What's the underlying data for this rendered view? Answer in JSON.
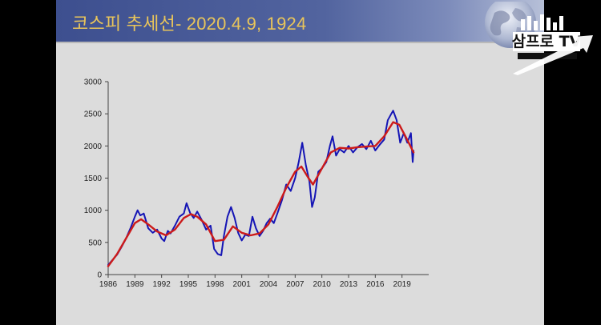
{
  "slide": {
    "title": "코스피 추세선- 2020.4.9, 1924"
  },
  "watermark": {
    "logo_text": "삼프로 TV"
  },
  "colors": {
    "title_bar": "#3d4f8f",
    "title_text": "#e9c55a",
    "series_actual": "#1515b5",
    "series_trend": "#cc1a1a",
    "slide_bg": "#dcdcdc"
  },
  "icons": [
    "globe-icon",
    "samprotv-logo-icon"
  ],
  "chart_data": {
    "type": "line",
    "title": "",
    "xlabel": "",
    "ylabel": "",
    "xlim": [
      1986,
      2022
    ],
    "ylim": [
      0,
      3000
    ],
    "x_ticks": [
      1986,
      1989,
      1992,
      1995,
      1998,
      2001,
      2004,
      2007,
      2010,
      2013,
      2016,
      2019
    ],
    "y_ticks": [
      0,
      500,
      1000,
      1500,
      2000,
      2500,
      3000
    ],
    "grid": false,
    "series": [
      {
        "color": "#1515b5",
        "points": [
          [
            1986.0,
            150
          ],
          [
            1986.5,
            230
          ],
          [
            1987.0,
            310
          ],
          [
            1987.5,
            430
          ],
          [
            1988.0,
            560
          ],
          [
            1988.5,
            720
          ],
          [
            1989.0,
            900
          ],
          [
            1989.3,
            1000
          ],
          [
            1989.6,
            920
          ],
          [
            1990.0,
            950
          ],
          [
            1990.5,
            720
          ],
          [
            1991.0,
            650
          ],
          [
            1991.5,
            700
          ],
          [
            1992.0,
            560
          ],
          [
            1992.3,
            520
          ],
          [
            1992.7,
            680
          ],
          [
            1993.0,
            640
          ],
          [
            1993.5,
            760
          ],
          [
            1994.0,
            900
          ],
          [
            1994.5,
            950
          ],
          [
            1994.8,
            1110
          ],
          [
            1995.2,
            960
          ],
          [
            1995.6,
            880
          ],
          [
            1996.0,
            980
          ],
          [
            1996.5,
            850
          ],
          [
            1997.0,
            700
          ],
          [
            1997.5,
            760
          ],
          [
            1997.9,
            400
          ],
          [
            1998.3,
            320
          ],
          [
            1998.7,
            300
          ],
          [
            1999.0,
            600
          ],
          [
            1999.4,
            900
          ],
          [
            1999.8,
            1050
          ],
          [
            2000.2,
            880
          ],
          [
            2000.6,
            650
          ],
          [
            2001.0,
            530
          ],
          [
            2001.4,
            620
          ],
          [
            2001.8,
            600
          ],
          [
            2002.2,
            900
          ],
          [
            2002.6,
            720
          ],
          [
            2003.0,
            600
          ],
          [
            2003.4,
            680
          ],
          [
            2003.8,
            800
          ],
          [
            2004.2,
            870
          ],
          [
            2004.6,
            800
          ],
          [
            2005.0,
            950
          ],
          [
            2005.5,
            1150
          ],
          [
            2006.0,
            1400
          ],
          [
            2006.5,
            1300
          ],
          [
            2007.0,
            1500
          ],
          [
            2007.4,
            1750
          ],
          [
            2007.8,
            2050
          ],
          [
            2008.2,
            1700
          ],
          [
            2008.6,
            1450
          ],
          [
            2008.9,
            1050
          ],
          [
            2009.2,
            1200
          ],
          [
            2009.6,
            1600
          ],
          [
            2010.0,
            1650
          ],
          [
            2010.5,
            1750
          ],
          [
            2010.9,
            2000
          ],
          [
            2011.2,
            2150
          ],
          [
            2011.6,
            1850
          ],
          [
            2012.0,
            1950
          ],
          [
            2012.5,
            1900
          ],
          [
            2013.0,
            2000
          ],
          [
            2013.5,
            1900
          ],
          [
            2014.0,
            1980
          ],
          [
            2014.5,
            2030
          ],
          [
            2015.0,
            1950
          ],
          [
            2015.5,
            2080
          ],
          [
            2016.0,
            1930
          ],
          [
            2016.5,
            2020
          ],
          [
            2017.0,
            2100
          ],
          [
            2017.4,
            2400
          ],
          [
            2017.8,
            2500
          ],
          [
            2018.0,
            2550
          ],
          [
            2018.4,
            2400
          ],
          [
            2018.8,
            2050
          ],
          [
            2019.2,
            2200
          ],
          [
            2019.6,
            2050
          ],
          [
            2020.0,
            2200
          ],
          [
            2020.2,
            1750
          ],
          [
            2020.3,
            1924
          ]
        ]
      },
      {
        "color": "#cc1a1a",
        "points": [
          [
            1986.0,
            130
          ],
          [
            1987.0,
            320
          ],
          [
            1988.0,
            560
          ],
          [
            1989.0,
            800
          ],
          [
            1989.7,
            860
          ],
          [
            1990.5,
            780
          ],
          [
            1991.5,
            670
          ],
          [
            1992.5,
            610
          ],
          [
            1993.5,
            700
          ],
          [
            1994.5,
            880
          ],
          [
            1995.3,
            940
          ],
          [
            1996.0,
            900
          ],
          [
            1997.0,
            780
          ],
          [
            1998.0,
            520
          ],
          [
            1999.0,
            540
          ],
          [
            2000.0,
            750
          ],
          [
            2001.0,
            650
          ],
          [
            2002.0,
            610
          ],
          [
            2003.0,
            640
          ],
          [
            2004.0,
            780
          ],
          [
            2005.0,
            1050
          ],
          [
            2006.0,
            1350
          ],
          [
            2007.0,
            1600
          ],
          [
            2007.7,
            1680
          ],
          [
            2008.5,
            1500
          ],
          [
            2009.0,
            1400
          ],
          [
            2010.0,
            1650
          ],
          [
            2011.0,
            1900
          ],
          [
            2012.0,
            1970
          ],
          [
            2013.0,
            1960
          ],
          [
            2014.0,
            1980
          ],
          [
            2015.0,
            1990
          ],
          [
            2016.0,
            2000
          ],
          [
            2017.0,
            2150
          ],
          [
            2018.0,
            2370
          ],
          [
            2018.7,
            2330
          ],
          [
            2019.5,
            2120
          ],
          [
            2020.3,
            1900
          ]
        ]
      }
    ]
  }
}
